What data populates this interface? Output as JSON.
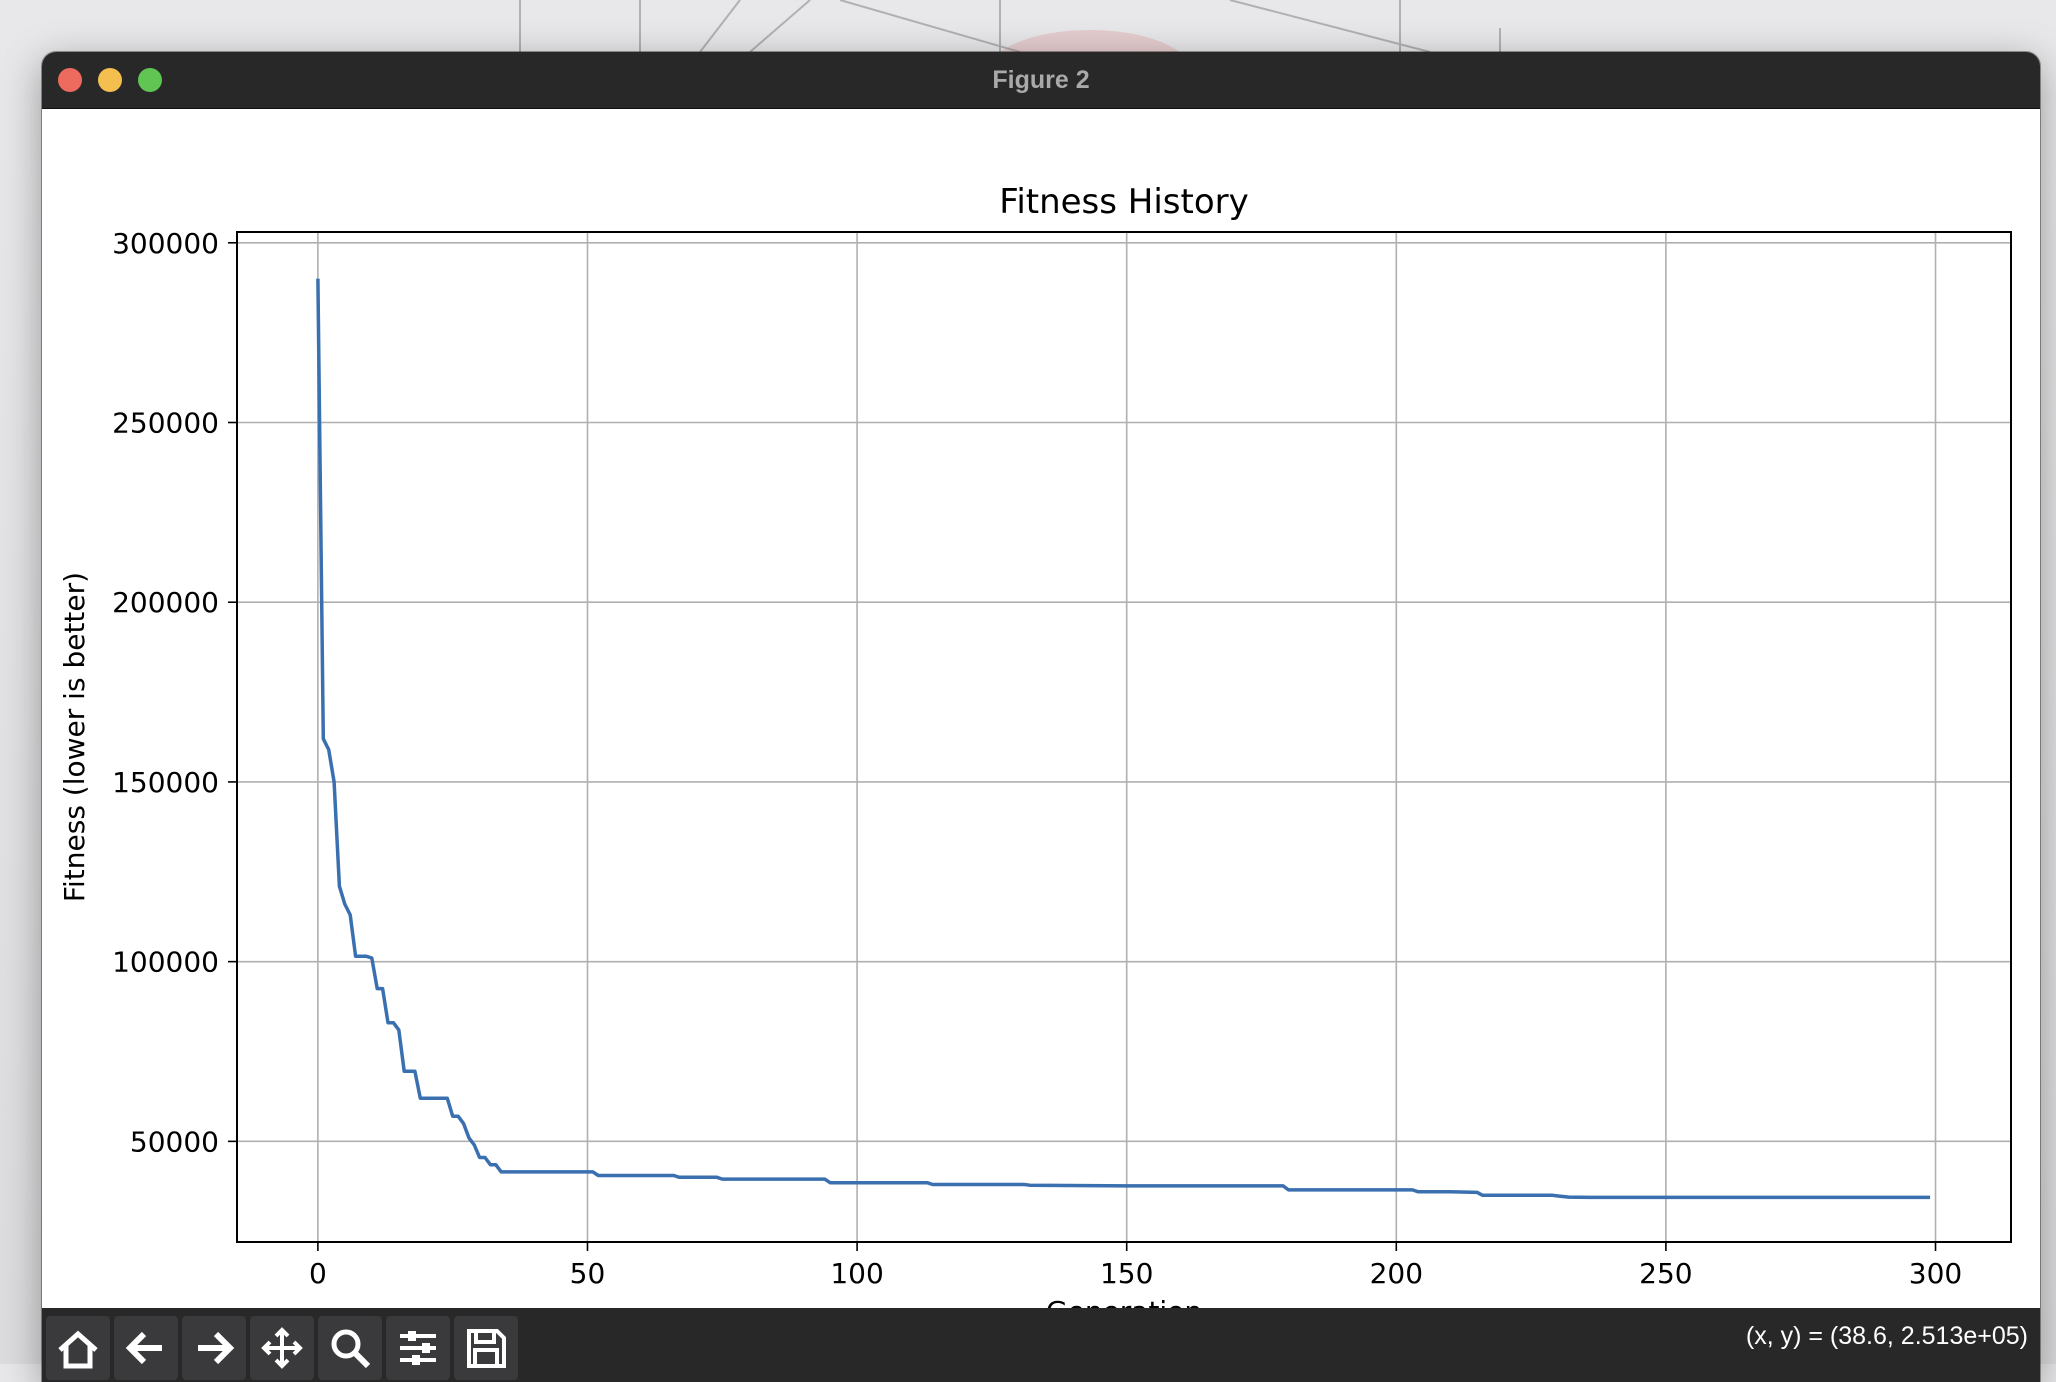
{
  "window": {
    "title": "Figure 2"
  },
  "toolbar": {
    "buttons": [
      {
        "name": "home-icon"
      },
      {
        "name": "back-arrow-icon"
      },
      {
        "name": "forward-arrow-icon"
      },
      {
        "name": "pan-icon"
      },
      {
        "name": "zoom-icon"
      },
      {
        "name": "configure-subplots-icon"
      },
      {
        "name": "save-icon"
      }
    ],
    "coords_readout": "(x, y) = (38.6, 2.513e+05)"
  },
  "chart_data": {
    "type": "line",
    "title": "Fitness History",
    "xlabel": "Generation",
    "ylabel": "Fitness (lower is better)",
    "xlim": [
      -15,
      314
    ],
    "ylim": [
      22000,
      303000
    ],
    "xticks": [
      0,
      50,
      100,
      150,
      200,
      250,
      300
    ],
    "yticks": [
      50000,
      100000,
      150000,
      200000,
      250000,
      300000
    ],
    "grid": true,
    "color": "#3a6fb0",
    "points": [
      [
        0,
        290000
      ],
      [
        1,
        162000
      ],
      [
        2,
        159000
      ],
      [
        3,
        150000
      ],
      [
        4,
        121000
      ],
      [
        5,
        116000
      ],
      [
        6,
        113000
      ],
      [
        7,
        101500
      ],
      [
        9,
        101500
      ],
      [
        10,
        101000
      ],
      [
        11,
        92500
      ],
      [
        12,
        92500
      ],
      [
        13,
        83000
      ],
      [
        14,
        83000
      ],
      [
        15,
        81000
      ],
      [
        16,
        69500
      ],
      [
        18,
        69500
      ],
      [
        19,
        62000
      ],
      [
        24,
        62000
      ],
      [
        25,
        57000
      ],
      [
        26,
        57000
      ],
      [
        27,
        55000
      ],
      [
        28,
        51000
      ],
      [
        29,
        49000
      ],
      [
        30,
        45500
      ],
      [
        31,
        45500
      ],
      [
        32,
        43500
      ],
      [
        33,
        43500
      ],
      [
        34,
        41500
      ],
      [
        51,
        41500
      ],
      [
        52,
        40500
      ],
      [
        66,
        40500
      ],
      [
        67,
        40000
      ],
      [
        74,
        40000
      ],
      [
        75,
        39500
      ],
      [
        94,
        39500
      ],
      [
        95,
        38500
      ],
      [
        113,
        38500
      ],
      [
        114,
        38000
      ],
      [
        131,
        38000
      ],
      [
        132,
        37800
      ],
      [
        150,
        37600
      ],
      [
        179,
        37600
      ],
      [
        180,
        36500
      ],
      [
        203,
        36500
      ],
      [
        204,
        36000
      ],
      [
        210,
        36000
      ],
      [
        215,
        35800
      ],
      [
        216,
        35000
      ],
      [
        229,
        35000
      ],
      [
        230,
        34800
      ],
      [
        232,
        34500
      ],
      [
        236,
        34400
      ],
      [
        299,
        34400
      ]
    ]
  }
}
